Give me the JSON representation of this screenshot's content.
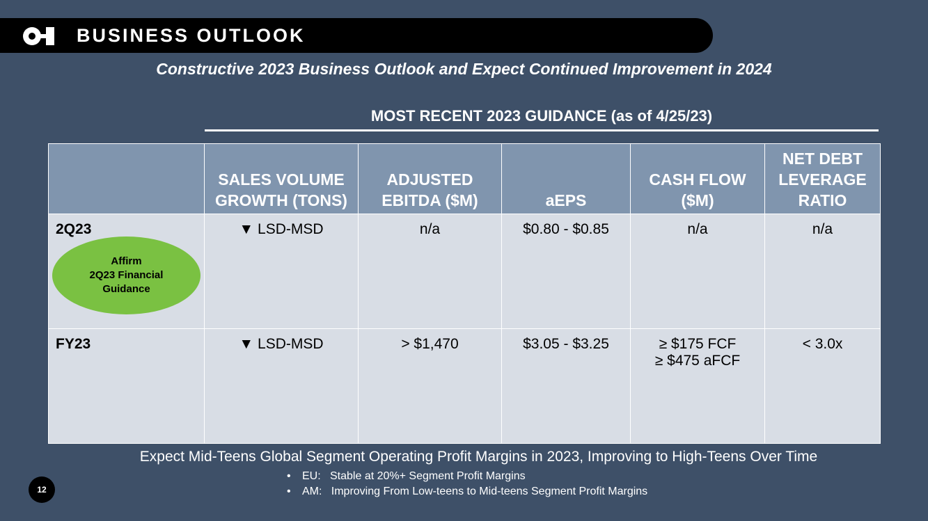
{
  "header": {
    "title": "BUSINESS OUTLOOK",
    "logo_icon": "oi-logo-icon"
  },
  "subtitle": "Constructive 2023 Business Outlook and Expect Continued Improvement in 2024",
  "guidance": {
    "title": "MOST RECENT 2023 GUIDANCE (as of 4/25/23)",
    "columns": [
      "",
      "SALES VOLUME GROWTH (TONS)",
      "ADJUSTED EBITDA ($M)",
      "aEPS",
      "CASH FLOW ($M)",
      "NET DEBT LEVERAGE RATIO"
    ],
    "rows": [
      {
        "label": "2Q23",
        "volume": "▼ LSD-MSD",
        "ebitda": "n/a",
        "aeps": "$0.80 - $0.85",
        "cashflow": [
          "n/a"
        ],
        "leverage": "n/a"
      },
      {
        "label": "FY23",
        "volume": "▼ LSD-MSD",
        "ebitda": "> $1,470",
        "aeps": "$3.05 - $3.25",
        "cashflow": [
          "≥ $175 FCF",
          "≥ $475 aFCF"
        ],
        "leverage": "< 3.0x"
      }
    ],
    "badge": {
      "lines": [
        "Affirm",
        "2Q23 Financial",
        "Guidance"
      ],
      "color": "#7ac142"
    }
  },
  "footer": {
    "headline": "Expect Mid-Teens Global Segment Operating Profit Margins in 2023, Improving to High-Teens Over Time",
    "bullets": [
      "EU:   Stable at 20%+ Segment Profit Margins",
      "AM:   Improving From Low-teens to Mid-teens Segment Profit Margins"
    ]
  },
  "page_number": "12",
  "colors": {
    "background": "#3e5068",
    "header_bg": "#000000",
    "table_header": "#8095ae",
    "table_cell": "#d8dde5"
  }
}
